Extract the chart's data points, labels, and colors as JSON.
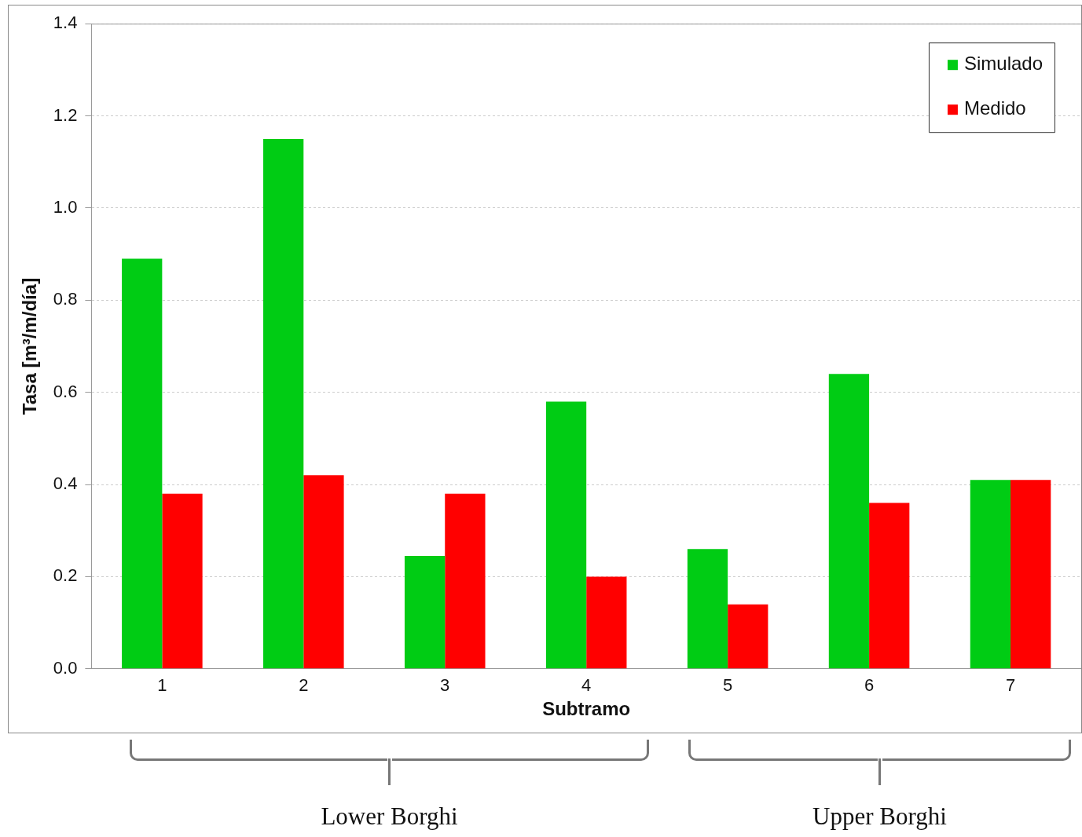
{
  "chart_data": {
    "type": "bar",
    "xlabel": "Subtramo",
    "ylabel": "Tasa [m³/m/día]",
    "categories": [
      "1",
      "2",
      "3",
      "4",
      "5",
      "6",
      "7"
    ],
    "series": [
      {
        "name": "Simulado",
        "color": "#00cc14",
        "values": [
          0.89,
          1.15,
          0.245,
          0.58,
          0.26,
          0.64,
          0.41
        ]
      },
      {
        "name": "Medido",
        "color": "#ff0000",
        "values": [
          0.38,
          0.42,
          0.38,
          0.2,
          0.14,
          0.36,
          0.41
        ]
      }
    ],
    "ylim": [
      0,
      1.4
    ],
    "yticks": [
      {
        "value": 0,
        "label": "0.0"
      },
      {
        "value": 0.2,
        "label": "0.2"
      },
      {
        "value": 0.4,
        "label": "0.4"
      },
      {
        "value": 0.6,
        "label": "0.6"
      },
      {
        "value": 0.8,
        "label": "0.8"
      },
      {
        "value": 1,
        "label": "1.0"
      },
      {
        "value": 1.2,
        "label": "1.2"
      },
      {
        "value": 1.4,
        "label": "1.4"
      }
    ],
    "grid": "y",
    "legend": "top right",
    "annotations": [
      "Lower Borghi",
      "Upper Borghi"
    ]
  }
}
